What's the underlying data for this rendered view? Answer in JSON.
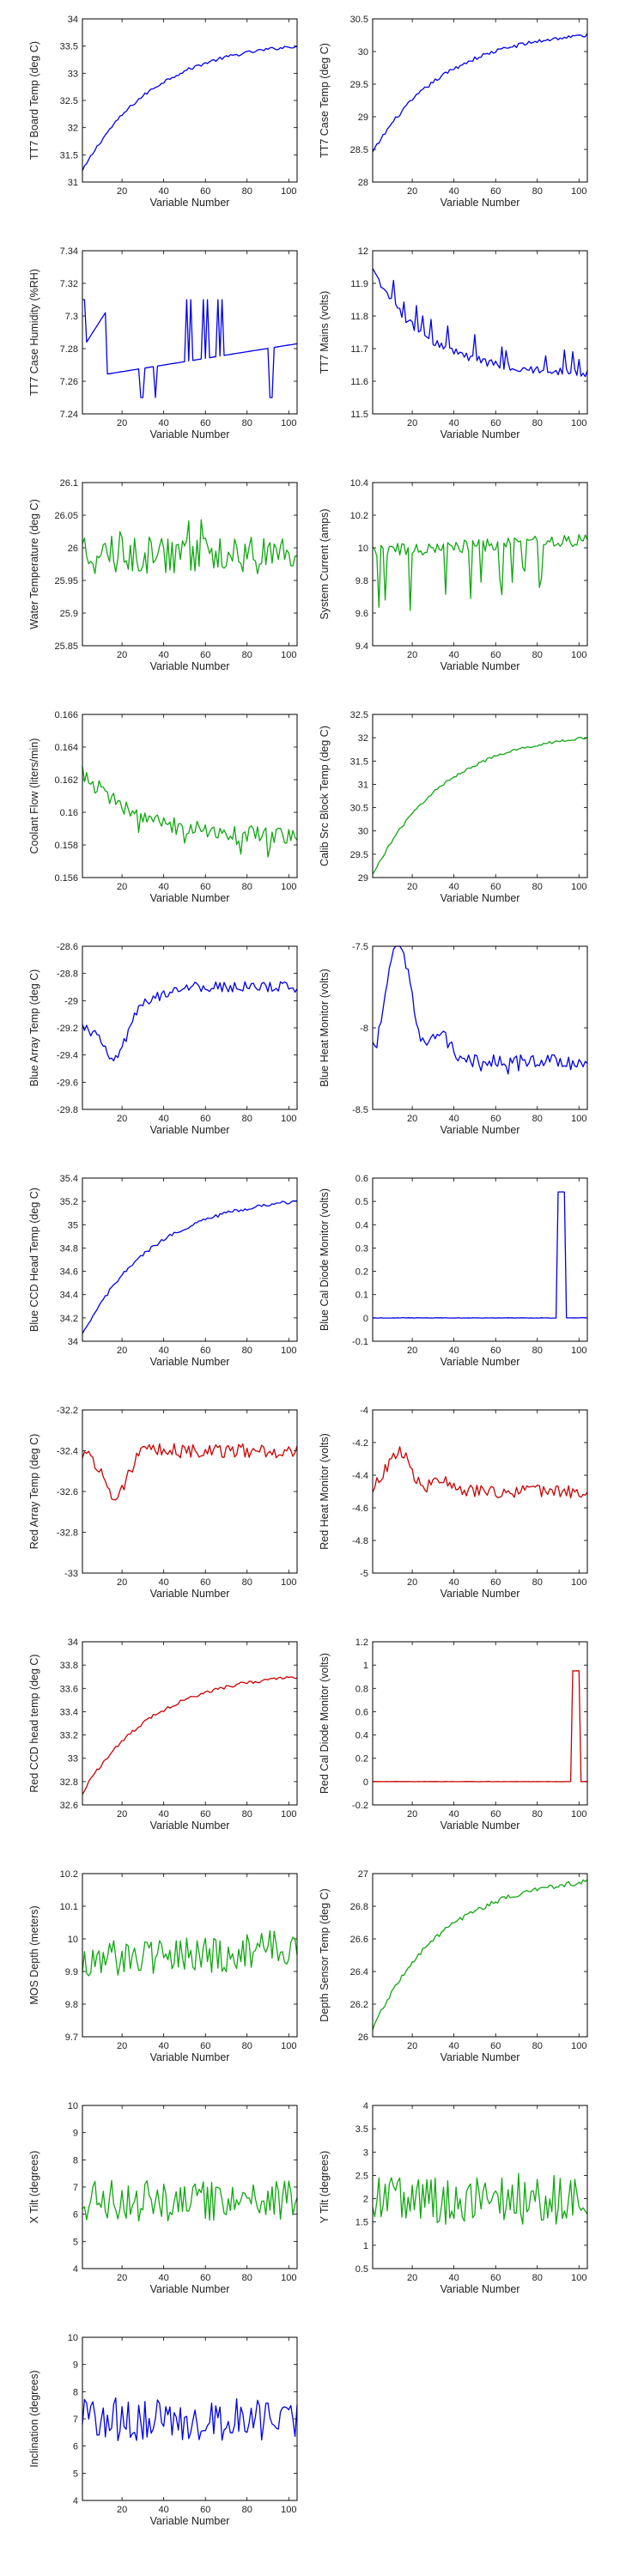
{
  "colors": {
    "blue": "#0000ee",
    "green": "#10a810",
    "red": "#cc0000"
  },
  "chart_data": [
    {
      "type": "line",
      "ylabel": "TT7 Board Temp (deg C)",
      "xlabel": "Variable Number",
      "xlim": [
        1,
        104
      ],
      "xticks": [
        20,
        40,
        60,
        80,
        100
      ],
      "ylim": [
        31,
        34
      ],
      "yticks": [
        31,
        31.5,
        32,
        32.5,
        33,
        33.5,
        34
      ],
      "color": "blue",
      "series": [
        {
          "shape": "rise",
          "start": 31.2,
          "end": 33.5,
          "noise": 0.03,
          "spike_prob": 0,
          "spike_size": 0
        }
      ]
    },
    {
      "type": "line",
      "ylabel": "TT7 Case Temp (deg C)",
      "xlabel": "Variable Number",
      "xlim": [
        1,
        104
      ],
      "xticks": [
        20,
        40,
        60,
        80,
        100
      ],
      "ylim": [
        28,
        30.5
      ],
      "yticks": [
        28,
        28.5,
        29,
        29.5,
        30,
        30.5
      ],
      "color": "blue",
      "series": [
        {
          "shape": "rise",
          "start": 28.45,
          "end": 30.25,
          "noise": 0.03,
          "spike_prob": 0,
          "spike_size": 0
        }
      ]
    },
    {
      "type": "line",
      "ylabel": "TT7 Case Humidity (%RH)",
      "xlabel": "Variable Number",
      "xlim": [
        1,
        104
      ],
      "xticks": [
        20,
        40,
        60,
        80,
        100
      ],
      "ylim": [
        7.24,
        7.34
      ],
      "yticks": [
        7.24,
        7.26,
        7.28,
        7.3,
        7.32,
        7.34
      ],
      "color": "blue",
      "series": [
        {
          "shape": "humidity",
          "start": 7.28,
          "end": 7.285,
          "noise": 0.0,
          "spike_prob": 0,
          "spike_size": 0
        }
      ]
    },
    {
      "type": "line",
      "ylabel": "TT7 Mains  (volts)",
      "xlabel": "Variable Number",
      "xlim": [
        1,
        104
      ],
      "xticks": [
        20,
        40,
        60,
        80,
        100
      ],
      "ylim": [
        11.5,
        12
      ],
      "yticks": [
        11.5,
        11.6,
        11.7,
        11.8,
        11.9,
        12
      ],
      "color": "blue",
      "series": [
        {
          "shape": "decay",
          "start": 11.94,
          "end": 11.62,
          "noise": 0.012,
          "spike_prob": 0.18,
          "spike_size": 0.08
        }
      ]
    },
    {
      "type": "line",
      "ylabel": "Water Temperature (deg C)",
      "xlabel": "Variable Number",
      "xlim": [
        1,
        104
      ],
      "xticks": [
        20,
        40,
        60,
        80,
        100
      ],
      "ylim": [
        25.85,
        26.1
      ],
      "yticks": [
        25.85,
        25.9,
        25.95,
        26,
        26.05,
        26.1
      ],
      "color": "green",
      "series": [
        {
          "shape": "noise",
          "start": 25.99,
          "end": 25.99,
          "noise": 0.03,
          "spike_prob": 0.05,
          "spike_size": 0.06
        }
      ]
    },
    {
      "type": "line",
      "ylabel": "System Current (amps)",
      "xlabel": "Variable Number",
      "xlim": [
        1,
        104
      ],
      "xticks": [
        20,
        40,
        60,
        80,
        100
      ],
      "ylim": [
        9.4,
        10.4
      ],
      "yticks": [
        9.4,
        9.6,
        9.8,
        10,
        10.2,
        10.4
      ],
      "color": "green",
      "series": [
        {
          "shape": "noise",
          "start": 9.98,
          "end": 10.05,
          "noise": 0.04,
          "spike_prob": 0.22,
          "spike_size": -0.35
        }
      ]
    },
    {
      "type": "line",
      "ylabel": "Coolant Flow (liters/min)",
      "xlabel": "Variable Number",
      "xlim": [
        1,
        104
      ],
      "xticks": [
        20,
        40,
        60,
        80,
        100
      ],
      "ylim": [
        0.156,
        0.166
      ],
      "yticks": [
        0.156,
        0.158,
        0.16,
        0.162,
        0.164,
        0.166
      ],
      "color": "green",
      "series": [
        {
          "shape": "decay",
          "start": 0.1625,
          "end": 0.1585,
          "noise": 0.0005,
          "spike_prob": 0.1,
          "spike_size": -0.0012
        }
      ]
    },
    {
      "type": "line",
      "ylabel": "Calib Src Block Temp (deg C)",
      "xlabel": "Variable Number",
      "xlim": [
        1,
        104
      ],
      "xticks": [
        20,
        40,
        60,
        80,
        100
      ],
      "ylim": [
        29,
        32.5
      ],
      "yticks": [
        29,
        29.5,
        30,
        30.5,
        31,
        31.5,
        32,
        32.5
      ],
      "color": "green",
      "series": [
        {
          "shape": "rise",
          "start": 29.05,
          "end": 32.0,
          "noise": 0.03,
          "spike_prob": 0,
          "spike_size": 0
        }
      ]
    },
    {
      "type": "line",
      "ylabel": "Blue Array Temp (deg C)",
      "xlabel": "Variable Number",
      "xlim": [
        1,
        104
      ],
      "xticks": [
        20,
        40,
        60,
        80,
        100
      ],
      "ylim": [
        -29.8,
        -28.6
      ],
      "yticks": [
        -29.8,
        -29.6,
        -29.4,
        -29.2,
        -29,
        -28.8,
        -28.6
      ],
      "color": "blue",
      "series": [
        {
          "shape": "dipRise",
          "start": -29.2,
          "end": -28.9,
          "noise": 0.04,
          "spike_prob": 0,
          "spike_size": 0
        }
      ]
    },
    {
      "type": "line",
      "ylabel": "Blue Heat Monitor (volts)",
      "xlabel": "Variable Number",
      "xlim": [
        1,
        104
      ],
      "xticks": [
        20,
        40,
        60,
        80,
        100
      ],
      "ylim": [
        -8.5,
        -7.5
      ],
      "yticks": [
        -8.5,
        -8,
        -7.5
      ],
      "color": "blue",
      "series": [
        {
          "shape": "humpDown",
          "start": -7.6,
          "end": -8.2,
          "noise": 0.04,
          "spike_prob": 0.1,
          "spike_size": -0.1
        }
      ]
    },
    {
      "type": "line",
      "ylabel": "Blue CCD Head Temp (deg C)",
      "xlabel": "Variable Number",
      "xlim": [
        1,
        104
      ],
      "xticks": [
        20,
        40,
        60,
        80,
        100
      ],
      "ylim": [
        34,
        35.4
      ],
      "yticks": [
        34,
        34.2,
        34.4,
        34.6,
        34.8,
        35,
        35.2,
        35.4
      ],
      "color": "blue",
      "series": [
        {
          "shape": "rise",
          "start": 34.05,
          "end": 35.2,
          "noise": 0.015,
          "spike_prob": 0,
          "spike_size": 0
        }
      ]
    },
    {
      "type": "line",
      "ylabel": "Blue Cal Diode Monitor (volts)",
      "xlabel": "Variable Number",
      "xlim": [
        1,
        104
      ],
      "xticks": [
        20,
        40,
        60,
        80,
        100
      ],
      "ylim": [
        -0.1,
        0.6
      ],
      "yticks": [
        -0.1,
        0,
        0.1,
        0.2,
        0.3,
        0.4,
        0.5,
        0.6
      ],
      "color": "blue",
      "series": [
        {
          "shape": "pulse",
          "start": 0,
          "end": 0,
          "noise": 0.001,
          "pulse_from": 89,
          "pulse_to": 92,
          "pulse_value": 0.54
        }
      ]
    },
    {
      "type": "line",
      "ylabel": "Red Array Temp (deg C)",
      "xlabel": "Variable Number",
      "xlim": [
        1,
        104
      ],
      "xticks": [
        20,
        40,
        60,
        80,
        100
      ],
      "ylim": [
        -33,
        -32.2
      ],
      "yticks": [
        -33,
        -32.8,
        -32.6,
        -32.4,
        -32.2
      ],
      "color": "red",
      "series": [
        {
          "shape": "dipRise",
          "start": -32.4,
          "end": -32.4,
          "noise": 0.035,
          "spike_prob": 0,
          "spike_size": 0
        }
      ]
    },
    {
      "type": "line",
      "ylabel": "Red Heat Monitor (volts)",
      "xlabel": "Variable Number",
      "xlim": [
        1,
        104
      ],
      "xticks": [
        20,
        40,
        60,
        80,
        100
      ],
      "ylim": [
        -5,
        -4
      ],
      "yticks": [
        -5,
        -4.8,
        -4.6,
        -4.4,
        -4.2,
        -4
      ],
      "color": "red",
      "series": [
        {
          "shape": "humpDown",
          "start": -4.3,
          "end": -4.5,
          "noise": 0.04,
          "spike_prob": 0,
          "spike_size": 0
        }
      ]
    },
    {
      "type": "line",
      "ylabel": "Red CCD head temp (deg C)",
      "xlabel": "Variable Number",
      "xlim": [
        1,
        104
      ],
      "xticks": [
        20,
        40,
        60,
        80,
        100
      ],
      "ylim": [
        32.6,
        34
      ],
      "yticks": [
        32.6,
        32.8,
        33,
        33.2,
        33.4,
        33.6,
        33.8,
        34
      ],
      "color": "red",
      "series": [
        {
          "shape": "rise",
          "start": 32.7,
          "end": 33.7,
          "noise": 0.015,
          "spike_prob": 0,
          "spike_size": 0
        }
      ]
    },
    {
      "type": "line",
      "ylabel": "Red Cal Diode Monitor (volts)",
      "xlabel": "Variable Number",
      "xlim": [
        1,
        104
      ],
      "xticks": [
        20,
        40,
        60,
        80,
        100
      ],
      "ylim": [
        -0.2,
        1.2
      ],
      "yticks": [
        -0.2,
        0,
        0.2,
        0.4,
        0.6,
        0.8,
        1,
        1.2
      ],
      "color": "red",
      "series": [
        {
          "shape": "pulse",
          "start": 0,
          "end": 0,
          "noise": 0.001,
          "pulse_from": 96,
          "pulse_to": 99,
          "pulse_value": 0.95
        }
      ]
    },
    {
      "type": "line",
      "ylabel": "MOS Depth  (meters)",
      "xlabel": "Variable Number",
      "xlim": [
        1,
        104
      ],
      "xticks": [
        20,
        40,
        60,
        80,
        100
      ],
      "ylim": [
        9.7,
        10.2
      ],
      "yticks": [
        9.7,
        9.8,
        9.9,
        10,
        10.1,
        10.2
      ],
      "color": "green",
      "series": [
        {
          "shape": "noise",
          "start": 9.93,
          "end": 9.97,
          "noise": 0.06,
          "spike_prob": 0,
          "spike_size": 0
        }
      ]
    },
    {
      "type": "line",
      "ylabel": "Depth Sensor Temp (deg C)",
      "xlabel": "Variable Number",
      "xlim": [
        1,
        104
      ],
      "xticks": [
        20,
        40,
        60,
        80,
        100
      ],
      "ylim": [
        26,
        27
      ],
      "yticks": [
        26,
        26.2,
        26.4,
        26.6,
        26.8,
        27
      ],
      "color": "green",
      "series": [
        {
          "shape": "rise",
          "start": 26.05,
          "end": 26.95,
          "noise": 0.015,
          "spike_prob": 0,
          "spike_size": 0
        }
      ]
    },
    {
      "type": "line",
      "ylabel": "X Tilt  (degrees)",
      "xlabel": "Variable Number",
      "xlim": [
        1,
        104
      ],
      "xticks": [
        20,
        40,
        60,
        80,
        100
      ],
      "ylim": [
        4,
        10
      ],
      "yticks": [
        4,
        5,
        6,
        7,
        8,
        9,
        10
      ],
      "color": "green",
      "series": [
        {
          "shape": "noise",
          "start": 6.5,
          "end": 6.5,
          "noise": 0.75,
          "spike_prob": 0,
          "spike_size": 0
        }
      ]
    },
    {
      "type": "line",
      "ylabel": "Y Tilt  (degrees)",
      "xlabel": "Variable Number",
      "xlim": [
        1,
        104
      ],
      "xticks": [
        20,
        40,
        60,
        80,
        100
      ],
      "ylim": [
        0.5,
        4
      ],
      "yticks": [
        0.5,
        1,
        1.5,
        2,
        2.5,
        3,
        3.5,
        4
      ],
      "color": "green",
      "series": [
        {
          "shape": "noise",
          "start": 2.0,
          "end": 2.0,
          "noise": 0.55,
          "spike_prob": 0,
          "spike_size": 0
        }
      ]
    },
    {
      "type": "line",
      "ylabel": "Inclination  (degrees)",
      "xlabel": "Variable Number",
      "xlim": [
        1,
        104
      ],
      "xticks": [
        20,
        40,
        60,
        80,
        100
      ],
      "ylim": [
        4,
        10
      ],
      "yticks": [
        4,
        5,
        6,
        7,
        8,
        9,
        10
      ],
      "color": "blue",
      "series": [
        {
          "shape": "noise",
          "start": 7.0,
          "end": 7.0,
          "noise": 0.8,
          "spike_prob": 0,
          "spike_size": 0
        }
      ]
    }
  ]
}
